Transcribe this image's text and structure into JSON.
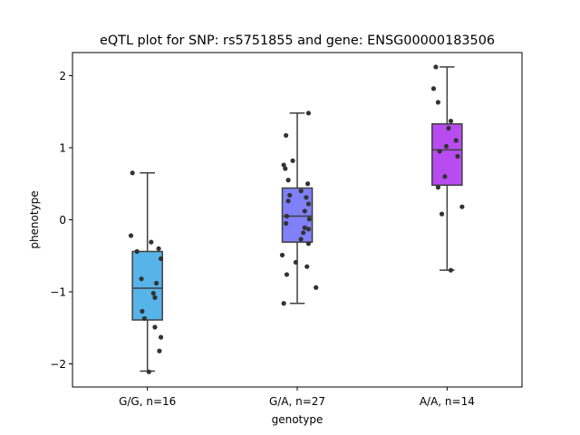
{
  "chart_data": {
    "type": "box",
    "title": "eQTL plot for SNP: rs5751855 and gene: ENSG00000183506",
    "xlabel": "genotype",
    "ylabel": "phenotype",
    "ylim": [
      -2.32,
      2.32
    ],
    "yticks": [
      -2,
      -1,
      0,
      1,
      2
    ],
    "grid": false,
    "categories": [
      "G/G, n=16",
      "G/A, n=27",
      "A/A, n=14"
    ],
    "groups": [
      {
        "label": "G/G, n=16",
        "color": "#56b4e9",
        "whisker_low": -2.1,
        "q1": -1.39,
        "median": -0.95,
        "q3": -0.44,
        "whisker_high": 0.65,
        "points": [
          [
            -0.2,
            0.65
          ],
          [
            -0.22,
            -0.22
          ],
          [
            -0.14,
            -0.44
          ],
          [
            0.05,
            -0.31
          ],
          [
            0.15,
            -0.4
          ],
          [
            0.18,
            -0.54
          ],
          [
            -0.08,
            -0.82
          ],
          [
            0.12,
            -0.88
          ],
          [
            0.08,
            -1.02
          ],
          [
            0.1,
            -1.08
          ],
          [
            -0.07,
            -1.27
          ],
          [
            -0.04,
            -1.37
          ],
          [
            0.1,
            -1.49
          ],
          [
            0.18,
            -1.63
          ],
          [
            0.16,
            -1.82
          ],
          [
            0.02,
            -2.11
          ]
        ]
      },
      {
        "label": "G/A, n=27",
        "color": "#8080f8",
        "whisker_low": -1.16,
        "q1": -0.31,
        "median": 0.05,
        "q3": 0.44,
        "whisker_high": 1.48,
        "points": [
          [
            0.15,
            1.48
          ],
          [
            -0.15,
            1.17
          ],
          [
            -0.18,
            0.76
          ],
          [
            -0.16,
            0.71
          ],
          [
            -0.06,
            0.82
          ],
          [
            -0.12,
            0.55
          ],
          [
            0.14,
            0.5
          ],
          [
            0.05,
            0.4
          ],
          [
            -0.1,
            0.34
          ],
          [
            0.12,
            0.31
          ],
          [
            -0.12,
            0.26
          ],
          [
            0.15,
            0.22
          ],
          [
            0.1,
            0.12
          ],
          [
            -0.14,
            0.05
          ],
          [
            0.16,
            0.01
          ],
          [
            -0.15,
            -0.05
          ],
          [
            0.1,
            -0.11
          ],
          [
            0.15,
            -0.13
          ],
          [
            0.08,
            -0.18
          ],
          [
            0.05,
            -0.27
          ],
          [
            0.15,
            -0.33
          ],
          [
            -0.2,
            -0.49
          ],
          [
            -0.02,
            -0.59
          ],
          [
            0.13,
            -0.65
          ],
          [
            -0.14,
            -0.76
          ],
          [
            0.25,
            -0.94
          ],
          [
            -0.18,
            -1.16
          ]
        ]
      },
      {
        "label": "A/A, n=14",
        "color": "#b84cf0",
        "whisker_low": -0.7,
        "q1": 0.48,
        "median": 0.97,
        "q3": 1.33,
        "whisker_high": 2.12,
        "points": [
          [
            -0.15,
            2.12
          ],
          [
            -0.18,
            1.82
          ],
          [
            -0.12,
            1.63
          ],
          [
            0.05,
            1.37
          ],
          [
            0.02,
            1.27
          ],
          [
            0.12,
            1.1
          ],
          [
            -0.01,
            1.02
          ],
          [
            -0.1,
            0.95
          ],
          [
            0.14,
            0.88
          ],
          [
            -0.03,
            0.6
          ],
          [
            -0.12,
            0.45
          ],
          [
            0.2,
            0.18
          ],
          [
            -0.07,
            0.08
          ],
          [
            0.05,
            -0.7
          ]
        ]
      }
    ]
  }
}
